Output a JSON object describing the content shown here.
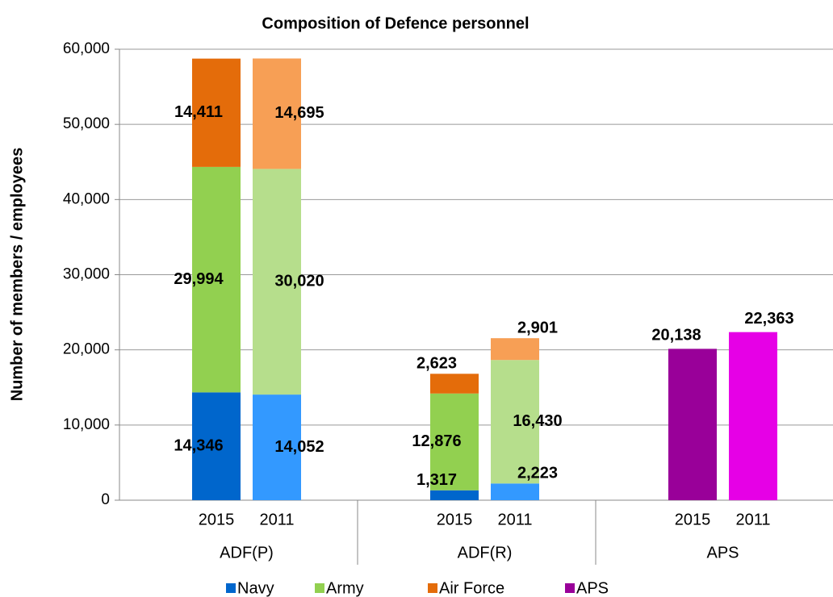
{
  "chart_data": {
    "type": "stacked_bar",
    "title": "Composition of Defence personnel",
    "y_label": "Number of members / employees",
    "groups": [
      {
        "name": "ADF(P)",
        "categories": [
          "2015",
          "2011"
        ]
      },
      {
        "name": "ADF(R)",
        "categories": [
          "2015",
          "2011"
        ]
      },
      {
        "name": "APS",
        "categories": [
          "2015",
          "2011"
        ]
      }
    ],
    "series": [
      {
        "name": "Navy",
        "color": "#0066cc",
        "colors": [
          "#0066cc",
          "#3399ff",
          "#0066cc",
          "#3399ff",
          "#0066cc",
          "#3399ff"
        ],
        "values": [
          14346,
          14052,
          1317,
          2223,
          null,
          null
        ],
        "value_labels": [
          "14,346",
          "14,052",
          "1,317",
          "2,223",
          null,
          null
        ]
      },
      {
        "name": "Army",
        "color": "#92d050",
        "colors": [
          "#92d050",
          "#b6de8c",
          "#92d050",
          "#b6de8c",
          "#92d050",
          "#b6de8c"
        ],
        "values": [
          29994,
          30020,
          12876,
          16430,
          null,
          null
        ],
        "value_labels": [
          "29,994",
          "30,020",
          "12,876",
          "16,430",
          null,
          null
        ]
      },
      {
        "name": "Air Force",
        "color": "#e46c0a",
        "colors": [
          "#e46c0a",
          "#f79f55",
          "#e46c0a",
          "#f79f55",
          "#e46c0a",
          "#f79f55"
        ],
        "values": [
          14411,
          14695,
          2623,
          2901,
          null,
          null
        ],
        "value_labels": [
          "14,411",
          "14,695",
          "2,623",
          "2,901",
          null,
          null
        ]
      },
      {
        "name": "APS",
        "color": "#990099",
        "colors": [
          "#990099",
          "#e600e6",
          "#990099",
          "#e600e6",
          "#990099",
          "#e600e6"
        ],
        "values": [
          null,
          null,
          null,
          null,
          20138,
          22363
        ],
        "value_labels": [
          null,
          null,
          null,
          null,
          "20,138",
          "22,363"
        ]
      }
    ],
    "ylim": [
      0,
      60000
    ],
    "yticks": [
      0,
      {
        "value": 10000,
        "label": "10,000"
      },
      {
        "value": 20000,
        "label": "20,000"
      },
      {
        "value": 30000,
        "label": "30,000"
      },
      {
        "value": 40000,
        "label": "40,000"
      },
      {
        "value": 50000,
        "label": "50,000"
      },
      {
        "value": 60000,
        "label": "60,000"
      }
    ],
    "grid": true,
    "legend": "bottom"
  }
}
